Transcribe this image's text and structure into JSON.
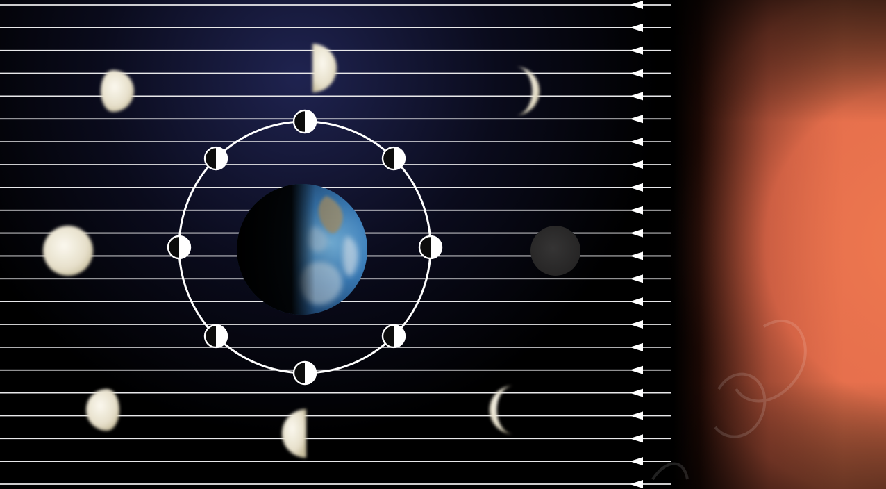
{
  "diagram": {
    "colors": {
      "space_dark": "#000000",
      "space_glow": "#1f2350",
      "sun_orange": "#f07a50",
      "sunlight_line": "#e8e8ea",
      "orbit": "#ffffff",
      "moon_lit": "#ece6d2",
      "moon_shadow": "#0c0c0c",
      "new_moon_fill": "#2e2d2d",
      "earth_ocean": "#3a7cb8",
      "earth_land": "#9a8f6e",
      "watermark": "#ffffff"
    },
    "sunlight": {
      "direction": "right-to-left",
      "count": 22
    },
    "orbit_moons": [
      {
        "angle_deg": 0
      },
      {
        "angle_deg": 45
      },
      {
        "angle_deg": 90
      },
      {
        "angle_deg": 135
      },
      {
        "angle_deg": 180
      },
      {
        "angle_deg": 225
      },
      {
        "angle_deg": 270
      },
      {
        "angle_deg": 315
      }
    ],
    "phases_as_seen_from_earth": [
      {
        "phase": "new",
        "illuminated_fraction": 0.0
      },
      {
        "phase": "waxing-crescent",
        "illuminated_fraction": 0.15
      },
      {
        "phase": "first-quarter",
        "illuminated_fraction": 0.5
      },
      {
        "phase": "waxing-gibbous",
        "illuminated_fraction": 0.8
      },
      {
        "phase": "full",
        "illuminated_fraction": 1.0
      },
      {
        "phase": "waning-gibbous",
        "illuminated_fraction": 0.8
      },
      {
        "phase": "third-quarter",
        "illuminated_fraction": 0.5
      },
      {
        "phase": "waning-crescent",
        "illuminated_fraction": 0.15
      }
    ]
  }
}
